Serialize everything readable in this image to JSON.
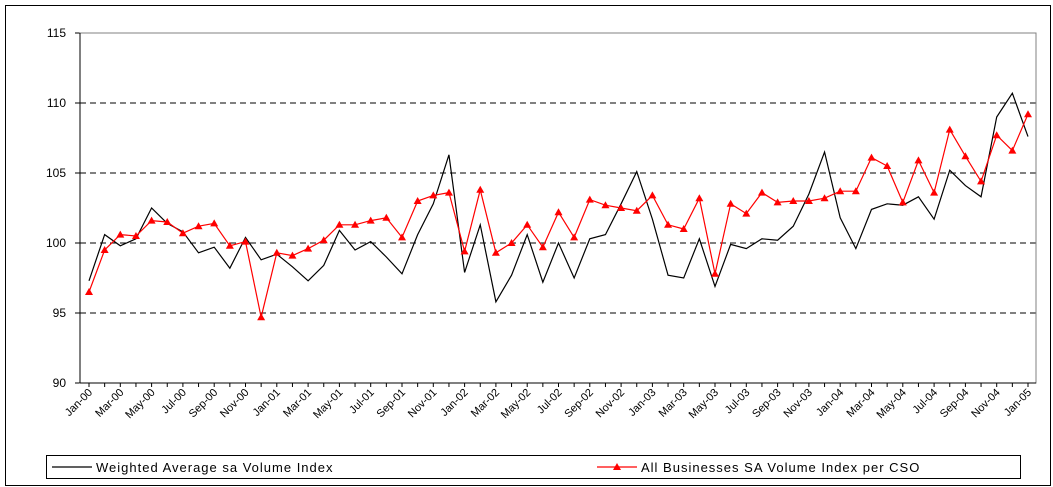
{
  "chart_data": {
    "type": "line",
    "categories": [
      "Jan-00",
      null,
      "Mar-00",
      null,
      "May-00",
      null,
      "Jul-00",
      null,
      "Sep-00",
      null,
      "Nov-00",
      null,
      "Jan-01",
      null,
      "Mar-01",
      null,
      "May-01",
      null,
      "Jul-01",
      null,
      "Sep-01",
      null,
      "Nov-01",
      null,
      "Jan-02",
      null,
      "Mar-02",
      null,
      "May-02",
      null,
      "Jul-02",
      null,
      "Sep-02",
      null,
      "Nov-02",
      null,
      "Jan-03",
      null,
      "Mar-03",
      null,
      "May-03",
      null,
      "Jul-03",
      null,
      "Sep-03",
      null,
      "Nov-03",
      null,
      "Jan-04",
      null,
      "Mar-04",
      null,
      "May-04",
      null,
      "Jul-04",
      null,
      "Sep-04",
      null,
      "Nov-04",
      null,
      "Jan-05"
    ],
    "series": [
      {
        "name": "Weighted Average sa Volume Index",
        "color": "#000000",
        "marker": false,
        "values": [
          97.3,
          100.6,
          99.8,
          100.3,
          102.5,
          101.4,
          100.8,
          99.3,
          99.7,
          98.2,
          100.4,
          98.8,
          99.2,
          98.3,
          97.3,
          98.4,
          100.9,
          99.5,
          100.1,
          99.0,
          97.8,
          100.6,
          102.8,
          106.3,
          97.9,
          101.3,
          95.8,
          97.7,
          100.6,
          97.2,
          100.0,
          97.5,
          100.3,
          100.6,
          102.8,
          105.1,
          101.7,
          97.7,
          97.5,
          100.3,
          96.9,
          99.9,
          99.6,
          100.3,
          100.2,
          101.2,
          103.5,
          106.5,
          101.8,
          99.6,
          102.4,
          102.8,
          102.7,
          103.3,
          101.7,
          105.2,
          104.1,
          103.3,
          109.0,
          110.7,
          107.6
        ]
      },
      {
        "name": "All Businesses SA Volume Index per CSO",
        "color": "#ff0000",
        "marker": true,
        "values": [
          96.5,
          99.5,
          100.6,
          100.5,
          101.6,
          101.5,
          100.7,
          101.2,
          101.4,
          99.8,
          100.1,
          94.7,
          99.3,
          99.1,
          99.6,
          100.2,
          101.3,
          101.3,
          101.6,
          101.8,
          100.4,
          103.0,
          103.4,
          103.6,
          99.4,
          103.8,
          99.3,
          100.0,
          101.3,
          99.7,
          102.2,
          100.4,
          103.1,
          102.7,
          102.5,
          102.3,
          103.4,
          101.3,
          101.0,
          103.2,
          97.8,
          102.8,
          102.1,
          103.6,
          102.9,
          103.0,
          103.0,
          103.2,
          103.7,
          103.7,
          106.1,
          105.5,
          102.9,
          105.9,
          103.6,
          108.1,
          106.2,
          104.4,
          107.7,
          106.6,
          109.2
        ]
      }
    ],
    "ylim": [
      90,
      115
    ],
    "yticks": [
      90,
      95,
      100,
      105,
      110,
      115
    ],
    "grid": true
  }
}
